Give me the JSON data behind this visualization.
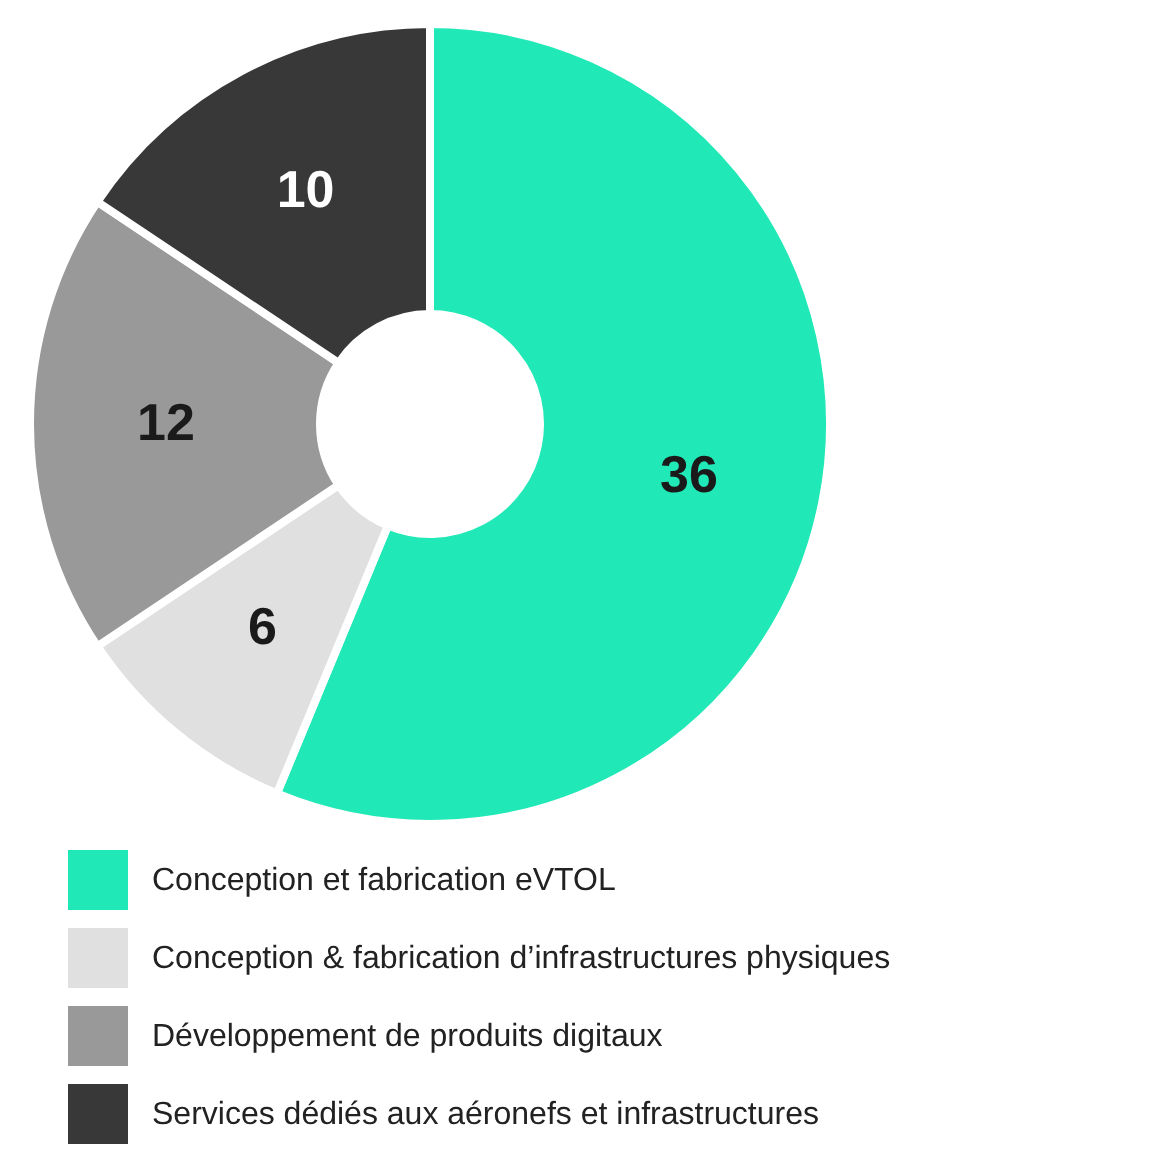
{
  "chart_data": {
    "type": "donut",
    "categories": [
      "Conception et fabrication eVTOL",
      "Conception & fabrication d’infrastructures physiques",
      "Développement de produits digitaux",
      "Services dédiés aux aéronefs et infrastructures"
    ],
    "values": [
      36,
      6,
      12,
      10
    ],
    "colors": [
      "#20e8b6",
      "#e0e0e0",
      "#999999",
      "#383838"
    ],
    "data_labels": true,
    "legend": "bottom"
  }
}
